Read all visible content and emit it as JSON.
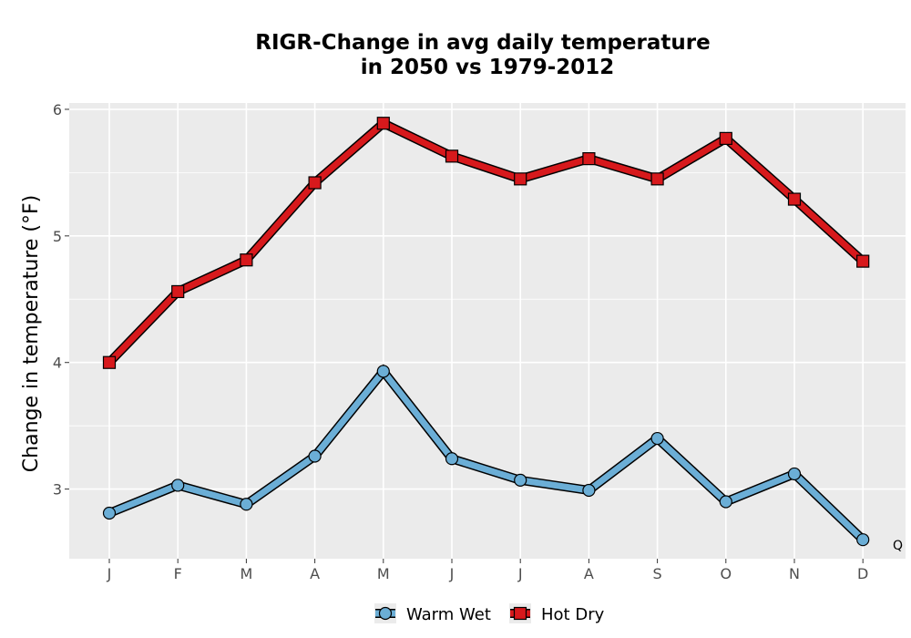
{
  "chart_data": {
    "type": "line",
    "title_line1": "RIGR-Change in avg daily temperature",
    "title_line2": "in 2050 vs 1979-2012",
    "xlabel": "",
    "ylabel": "Change in temperature (°F)",
    "categories": [
      "J",
      "F",
      "M",
      "A",
      "M",
      "J",
      "J",
      "A",
      "S",
      "O",
      "N",
      "D"
    ],
    "yticks": [
      3,
      4,
      5,
      6
    ],
    "ylim": [
      2.45,
      6.05
    ],
    "grid": true,
    "legend_position": "bottom",
    "corner_label": "Q",
    "series": [
      {
        "name": "Warm Wet",
        "marker": "circle",
        "fill": "#6baed6",
        "stroke": "#000000",
        "values": [
          2.81,
          3.03,
          2.88,
          3.26,
          3.93,
          3.24,
          3.07,
          2.99,
          3.4,
          2.9,
          3.12,
          2.6
        ]
      },
      {
        "name": "Hot Dry",
        "marker": "square",
        "fill": "#d7191c",
        "stroke": "#000000",
        "values": [
          4.0,
          4.56,
          4.81,
          5.42,
          5.89,
          5.63,
          5.45,
          5.61,
          5.45,
          5.77,
          5.29,
          4.8
        ]
      }
    ],
    "colors": {
      "panel": "#ebebeb",
      "grid": "#ffffff",
      "tick_text": "#4d4d4d"
    }
  }
}
